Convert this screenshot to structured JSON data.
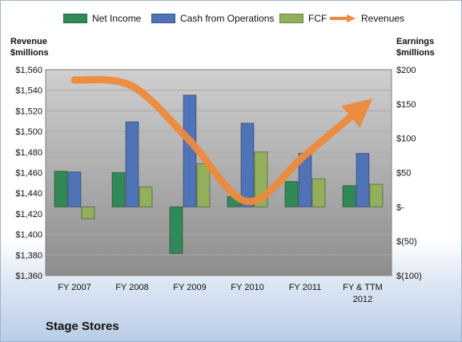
{
  "company_name": "Stage Stores",
  "chart_data": {
    "type": "bar",
    "categories": [
      "FY 2007",
      "FY 2008",
      "FY 2009",
      "FY 2010",
      "FY 2011",
      "FY & TTM\n2012"
    ],
    "left_axis": {
      "title_line1": "Revenue",
      "title_line2": "$millions",
      "ylim": [
        1360,
        1560
      ],
      "ticks": [
        "$1,360",
        "$1,380",
        "$1,400",
        "$1,420",
        "$1,440",
        "$1,460",
        "$1,480",
        "$1,500",
        "$1,520",
        "$1,540",
        "$1,560"
      ]
    },
    "right_axis": {
      "title_line1": "Earnings",
      "title_line2": "$millions",
      "ylim": [
        -100,
        200
      ],
      "ticks": [
        "$(100)",
        "$(50)",
        "$-",
        "$50",
        "$100",
        "$150",
        "$200"
      ]
    },
    "series": [
      {
        "name": "Net Income",
        "axis": "right",
        "color": "#2e8b57",
        "values": [
          52,
          50,
          -68,
          15,
          37,
          31
        ]
      },
      {
        "name": "Cash from Operations",
        "axis": "right",
        "color": "#4f73b8",
        "values": [
          51,
          124,
          163,
          122,
          78,
          78
        ]
      },
      {
        "name": "FCF",
        "axis": "right",
        "color": "#92b05a",
        "values": [
          -17,
          29,
          63,
          80,
          41,
          33
        ]
      },
      {
        "name": "Revenues",
        "axis": "left",
        "type": "line",
        "color": "#ee8a3a",
        "values": [
          1550,
          1544,
          1491,
          1432,
          1477,
          1524
        ]
      }
    ],
    "legend_position": "top",
    "grid": true
  }
}
